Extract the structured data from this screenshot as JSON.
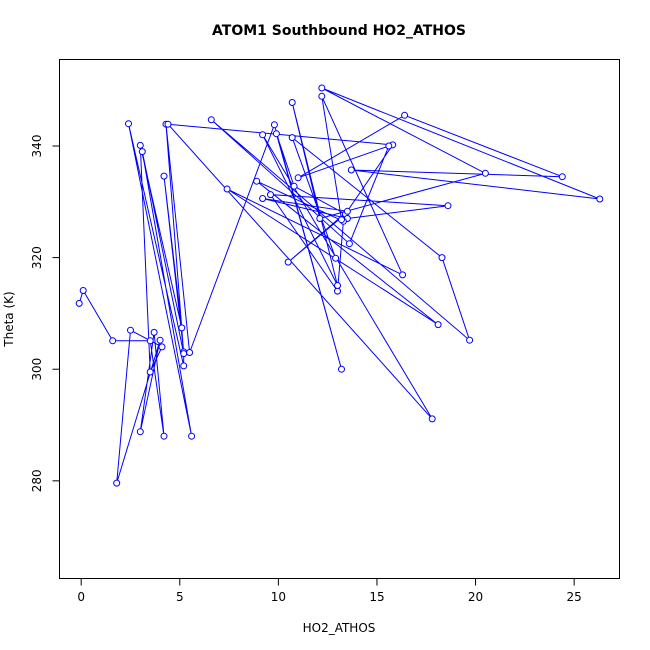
{
  "chart_data": {
    "type": "line",
    "title": "ATOM1 Southbound HO2_ATHOS",
    "xlabel": "HO2_ATHOS",
    "ylabel": "Theta (K)",
    "xlim": [
      -1.1,
      27.3
    ],
    "ylim": [
      262.5,
      355.5
    ],
    "xticks": [
      0,
      5,
      10,
      15,
      20,
      25
    ],
    "yticks": [
      280,
      300,
      320,
      340
    ],
    "grid": false,
    "series_color": "#0000ff",
    "series": [
      {
        "x": [
          -0.1,
          0.1,
          1.6,
          3.5,
          4.2,
          3.7,
          3.0,
          4.0,
          1.8,
          2.5,
          4.1,
          3.5,
          3.0,
          5.1,
          4.2,
          5.2,
          5.2,
          2.4,
          5.6,
          3.1,
          5.2,
          4.3,
          5.5,
          9.8,
          13.2,
          9.9,
          10.8,
          13.4,
          10.5,
          13.5,
          9.2,
          13.5,
          18.6,
          9.6,
          13.0,
          13.3,
          8.9,
          18.1,
          7.4,
          16.3,
          12.2,
          13.2,
          15.8,
          4.4,
          17.8,
          9.2,
          13.0,
          10.7,
          12.1,
          20.5,
          12.2,
          26.3,
          13.7,
          24.4,
          16.4,
          11.0,
          15.6,
          13.6,
          6.6,
          19.7,
          18.3,
          10.7,
          12.9
        ]
      }
    ],
    "y": [
      311.8,
      314.1,
      305.1,
      305.1,
      288.0,
      306.6,
      288.8,
      305.2,
      279.6,
      307.0,
      304.0,
      299.5,
      340.1,
      307.4,
      334.6,
      303.1,
      300.6,
      344.0,
      288.0,
      339.0,
      302.8,
      343.9,
      303.0,
      343.8,
      300.0,
      342.2,
      332.8,
      327.8,
      319.2,
      328.3,
      330.6,
      327.0,
      329.3,
      331.3,
      314.0,
      326.5,
      333.7,
      308.0,
      332.3,
      316.9,
      348.9,
      326.8,
      340.2,
      343.9,
      291.1,
      342.0,
      315.0,
      347.8,
      327.0,
      335.1,
      350.4,
      330.5,
      335.7,
      334.5,
      345.5,
      334.3,
      340.0,
      322.5,
      344.7,
      305.2,
      320.0,
      341.5,
      319.9
    ]
  }
}
